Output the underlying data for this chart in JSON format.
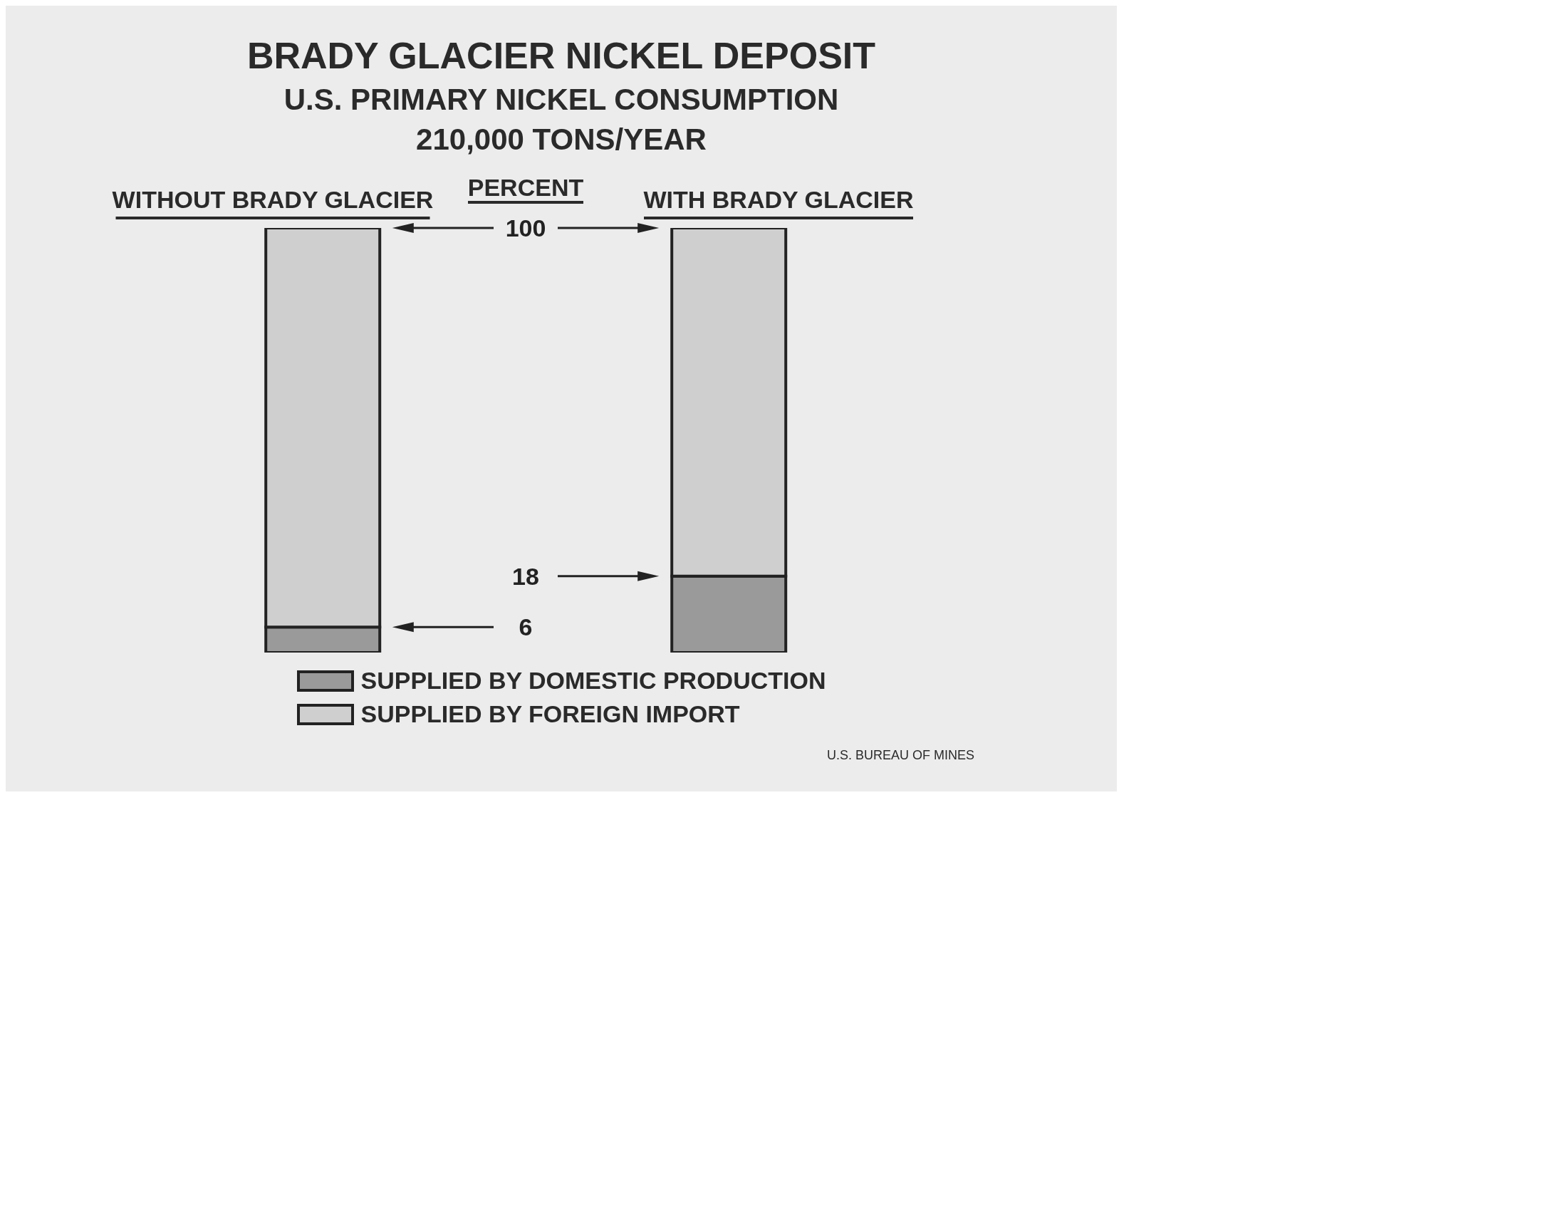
{
  "chart_data": {
    "type": "bar",
    "title": "BRADY GLACIER NICKEL DEPOSIT",
    "subtitle": "U.S. PRIMARY NICKEL CONSUMPTION\n210,000 TONS/YEAR",
    "ylabel": "PERCENT",
    "categories": [
      "WITHOUT BRADY GLACIER",
      "WITH BRADY GLACIER"
    ],
    "stacked": true,
    "series": [
      {
        "name": "SUPPLIED BY DOMESTIC PRODUCTION",
        "color": "#9a9a9a",
        "values": [
          6,
          18
        ]
      },
      {
        "name": "SUPPLIED BY FOREIGN IMPORT",
        "color": "#cfcfcf",
        "values": [
          94,
          82
        ]
      }
    ],
    "ylim": [
      0,
      100
    ],
    "yticks": [
      6,
      18,
      100
    ],
    "legend": "bottom",
    "annotations": [
      "U.S. BUREAU OF MINES"
    ]
  }
}
